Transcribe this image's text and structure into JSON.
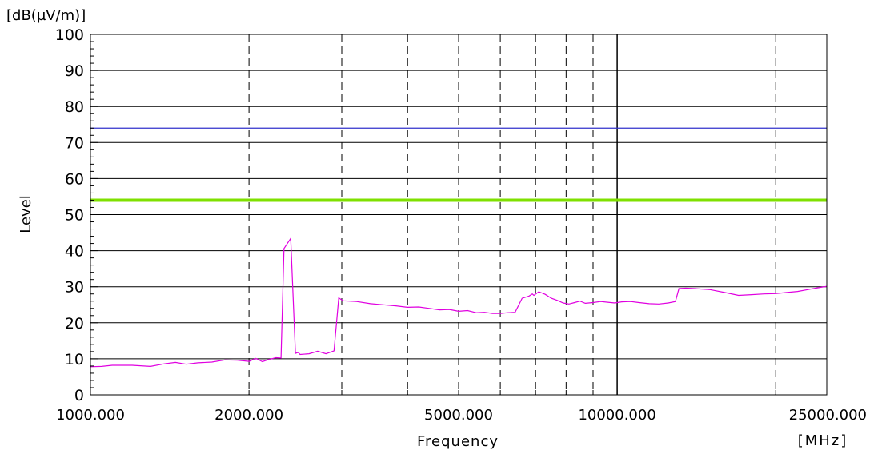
{
  "chart_data": {
    "type": "line",
    "y_unit": "[dB(µV/m)]",
    "x_unit": "[MHz]",
    "xlabel": "Frequency",
    "ylabel": "Level",
    "x_scale": "log",
    "xlim": [
      1000,
      25000
    ],
    "ylim": [
      0,
      100
    ],
    "x_ticks": [
      {
        "value": 1000,
        "label": "1000.000"
      },
      {
        "value": 2000,
        "label": "2000.000"
      },
      {
        "value": 5000,
        "label": "5000.000"
      },
      {
        "value": 10000,
        "label": "10000.000"
      },
      {
        "value": 25000,
        "label": "25000.000"
      }
    ],
    "y_ticks": [
      0,
      10,
      20,
      30,
      40,
      50,
      60,
      70,
      80,
      90,
      100
    ],
    "x_grid_dashed": [
      2000,
      3000,
      4000,
      5000,
      6000,
      7000,
      8000,
      9000,
      20000
    ],
    "x_grid_solid": [
      10000
    ],
    "grid": true,
    "limit_lines": [
      {
        "value": 74,
        "color": "#3333cc"
      },
      {
        "value": 54,
        "color": "#7fe000"
      }
    ],
    "series": [
      {
        "color": "#e000e0",
        "x": [
          1000,
          1050,
          1100,
          1200,
          1300,
          1380,
          1450,
          1520,
          1600,
          1700,
          1800,
          1900,
          2000,
          2060,
          2120,
          2180,
          2250,
          2300,
          2330,
          2400,
          2450,
          2480,
          2500,
          2600,
          2700,
          2800,
          2900,
          2960,
          2990,
          3020,
          3200,
          3400,
          3600,
          3800,
          4000,
          4200,
          4400,
          4600,
          4800,
          5000,
          5200,
          5400,
          5600,
          5800,
          6000,
          6200,
          6400,
          6600,
          6800,
          6900,
          6950,
          7100,
          7300,
          7500,
          7700,
          7900,
          8100,
          8300,
          8500,
          8700,
          9000,
          9300,
          9600,
          9900,
          10200,
          10600,
          11000,
          11500,
          12000,
          12500,
          12900,
          13100,
          13500,
          14000,
          15000,
          16000,
          17000,
          18000,
          19000,
          20000,
          21000,
          22000,
          23000,
          24000,
          25000
        ],
        "y": [
          7.8,
          7.9,
          8.2,
          8.2,
          7.9,
          8.6,
          9.0,
          8.5,
          8.9,
          9.1,
          9.7,
          9.6,
          9.3,
          10.1,
          9.2,
          9.8,
          10.3,
          10.2,
          40.6,
          43.4,
          11.5,
          11.8,
          11.2,
          11.4,
          12.1,
          11.4,
          12.2,
          26.9,
          26.5,
          26.1,
          25.9,
          25.3,
          25.0,
          24.7,
          24.3,
          24.4,
          24.0,
          23.6,
          23.7,
          23.2,
          23.4,
          22.8,
          22.9,
          22.6,
          22.6,
          22.8,
          22.9,
          26.8,
          27.4,
          28.0,
          27.6,
          28.6,
          27.9,
          26.8,
          26.2,
          25.5,
          25.2,
          25.6,
          26.0,
          25.4,
          25.6,
          25.9,
          25.7,
          25.5,
          25.8,
          25.9,
          25.6,
          25.3,
          25.2,
          25.5,
          25.9,
          29.5,
          29.6,
          29.5,
          29.2,
          28.4,
          27.6,
          27.8,
          28.0,
          28.1,
          28.4,
          28.7,
          29.2,
          29.7,
          30.1
        ]
      }
    ]
  }
}
